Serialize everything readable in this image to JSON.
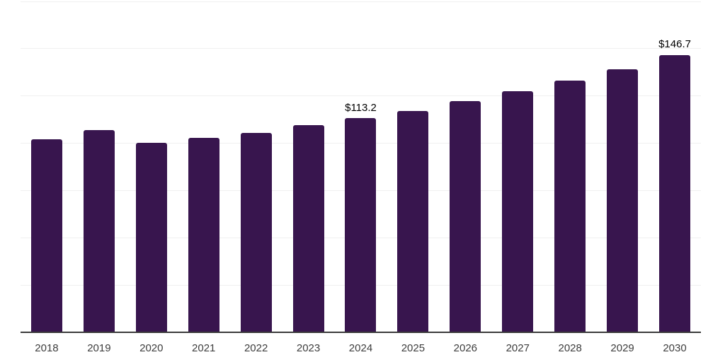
{
  "chart_data": {
    "type": "bar",
    "title": "",
    "xlabel": "",
    "ylabel": "",
    "categories": [
      "2018",
      "2019",
      "2020",
      "2021",
      "2022",
      "2023",
      "2024",
      "2025",
      "2026",
      "2027",
      "2028",
      "2029",
      "2030"
    ],
    "values": [
      102.0,
      106.8,
      100.1,
      103.0,
      105.5,
      109.5,
      113.2,
      117.0,
      122.4,
      127.4,
      133.2,
      139.2,
      146.7
    ],
    "data_labels": [
      "",
      "",
      "",
      "",
      "",
      "",
      "$113.2",
      "",
      "",
      "",
      "",
      "",
      "$146.7"
    ],
    "ylim": [
      0,
      175
    ],
    "grid_step": 25,
    "grid": true,
    "legend_position": "none",
    "colors": {
      "bar": "#38154E",
      "gridline": "#f0f0f0",
      "axis_line": "#3a3a3a",
      "tick_label": "#3d3d3d",
      "data_label": "#000000",
      "background": "#ffffff"
    }
  }
}
